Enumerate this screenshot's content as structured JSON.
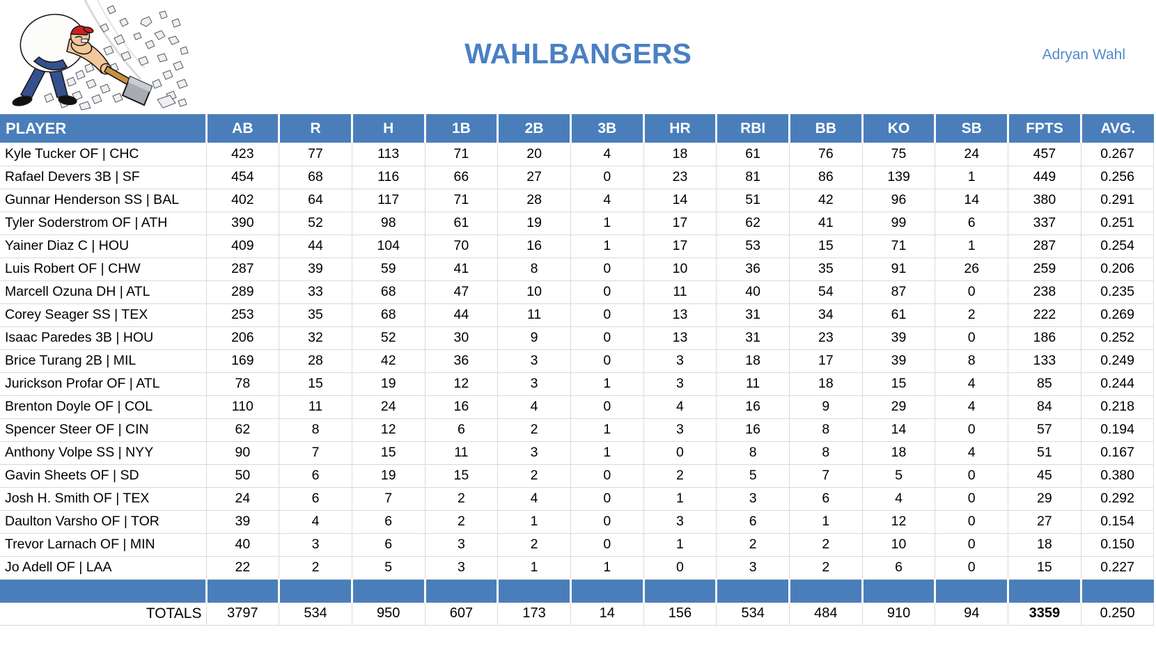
{
  "page": {
    "title": "WAHLBANGERS",
    "owner": "Adryan Wahl"
  },
  "logo": {
    "description": "cartoon man in red cap smashing rocks with sledgehammer",
    "icon": "hammer-smash-cartoon"
  },
  "colors": {
    "header_blue": "#4a7ebb",
    "title_blue": "#4a80c4",
    "gridline": "#d9d9d9",
    "text": "#000000"
  },
  "table": {
    "columns": [
      "PLAYER",
      "AB",
      "R",
      "H",
      "1B",
      "2B",
      "3B",
      "HR",
      "RBI",
      "BB",
      "KO",
      "SB",
      "FPTS",
      "AVG."
    ],
    "players": [
      {
        "name": "Kyle Tucker OF | CHC",
        "stats": [
          "423",
          "77",
          "113",
          "71",
          "20",
          "4",
          "18",
          "61",
          "76",
          "75",
          "24",
          "457",
          "0.267"
        ]
      },
      {
        "name": "Rafael Devers 3B | SF",
        "stats": [
          "454",
          "68",
          "116",
          "66",
          "27",
          "0",
          "23",
          "81",
          "86",
          "139",
          "1",
          "449",
          "0.256"
        ]
      },
      {
        "name": "Gunnar Henderson SS | BAL",
        "stats": [
          "402",
          "64",
          "117",
          "71",
          "28",
          "4",
          "14",
          "51",
          "42",
          "96",
          "14",
          "380",
          "0.291"
        ]
      },
      {
        "name": "Tyler Soderstrom OF | ATH",
        "stats": [
          "390",
          "52",
          "98",
          "61",
          "19",
          "1",
          "17",
          "62",
          "41",
          "99",
          "6",
          "337",
          "0.251"
        ]
      },
      {
        "name": "Yainer Diaz C | HOU",
        "stats": [
          "409",
          "44",
          "104",
          "70",
          "16",
          "1",
          "17",
          "53",
          "15",
          "71",
          "1",
          "287",
          "0.254"
        ]
      },
      {
        "name": "Luis Robert OF | CHW",
        "stats": [
          "287",
          "39",
          "59",
          "41",
          "8",
          "0",
          "10",
          "36",
          "35",
          "91",
          "26",
          "259",
          "0.206"
        ]
      },
      {
        "name": "Marcell Ozuna DH | ATL",
        "stats": [
          "289",
          "33",
          "68",
          "47",
          "10",
          "0",
          "11",
          "40",
          "54",
          "87",
          "0",
          "238",
          "0.235"
        ]
      },
      {
        "name": "Corey Seager SS | TEX",
        "stats": [
          "253",
          "35",
          "68",
          "44",
          "11",
          "0",
          "13",
          "31",
          "34",
          "61",
          "2",
          "222",
          "0.269"
        ]
      },
      {
        "name": "Isaac Paredes 3B | HOU",
        "stats": [
          "206",
          "32",
          "52",
          "30",
          "9",
          "0",
          "13",
          "31",
          "23",
          "39",
          "0",
          "186",
          "0.252"
        ]
      },
      {
        "name": "Brice Turang 2B | MIL",
        "stats": [
          "169",
          "28",
          "42",
          "36",
          "3",
          "0",
          "3",
          "18",
          "17",
          "39",
          "8",
          "133",
          "0.249"
        ]
      },
      {
        "name": "Jurickson Profar OF | ATL",
        "stats": [
          "78",
          "15",
          "19",
          "12",
          "3",
          "1",
          "3",
          "11",
          "18",
          "15",
          "4",
          "85",
          "0.244"
        ]
      },
      {
        "name": "Brenton Doyle OF | COL",
        "stats": [
          "110",
          "11",
          "24",
          "16",
          "4",
          "0",
          "4",
          "16",
          "9",
          "29",
          "4",
          "84",
          "0.218"
        ]
      },
      {
        "name": "Spencer Steer OF | CIN",
        "stats": [
          "62",
          "8",
          "12",
          "6",
          "2",
          "1",
          "3",
          "16",
          "8",
          "14",
          "0",
          "57",
          "0.194"
        ]
      },
      {
        "name": "Anthony Volpe SS | NYY",
        "stats": [
          "90",
          "7",
          "15",
          "11",
          "3",
          "1",
          "0",
          "8",
          "8",
          "18",
          "4",
          "51",
          "0.167"
        ]
      },
      {
        "name": "Gavin Sheets OF | SD",
        "stats": [
          "50",
          "6",
          "19",
          "15",
          "2",
          "0",
          "2",
          "5",
          "7",
          "5",
          "0",
          "45",
          "0.380"
        ]
      },
      {
        "name": "Josh H. Smith OF | TEX",
        "stats": [
          "24",
          "6",
          "7",
          "2",
          "4",
          "0",
          "1",
          "3",
          "6",
          "4",
          "0",
          "29",
          "0.292"
        ]
      },
      {
        "name": "Daulton Varsho OF | TOR",
        "stats": [
          "39",
          "4",
          "6",
          "2",
          "1",
          "0",
          "3",
          "6",
          "1",
          "12",
          "0",
          "27",
          "0.154"
        ]
      },
      {
        "name": "Trevor Larnach OF | MIN",
        "stats": [
          "40",
          "3",
          "6",
          "3",
          "2",
          "0",
          "1",
          "2",
          "2",
          "10",
          "0",
          "18",
          "0.150"
        ]
      },
      {
        "name": "Jo Adell OF | LAA",
        "stats": [
          "22",
          "2",
          "5",
          "3",
          "1",
          "1",
          "0",
          "3",
          "2",
          "6",
          "0",
          "15",
          "0.227"
        ]
      }
    ],
    "totals": {
      "label": "TOTALS",
      "values": [
        "3797",
        "534",
        "950",
        "607",
        "173",
        "14",
        "156",
        "534",
        "484",
        "910",
        "94",
        "3359",
        "0.250"
      ],
      "bold_column": "FPTS"
    }
  }
}
